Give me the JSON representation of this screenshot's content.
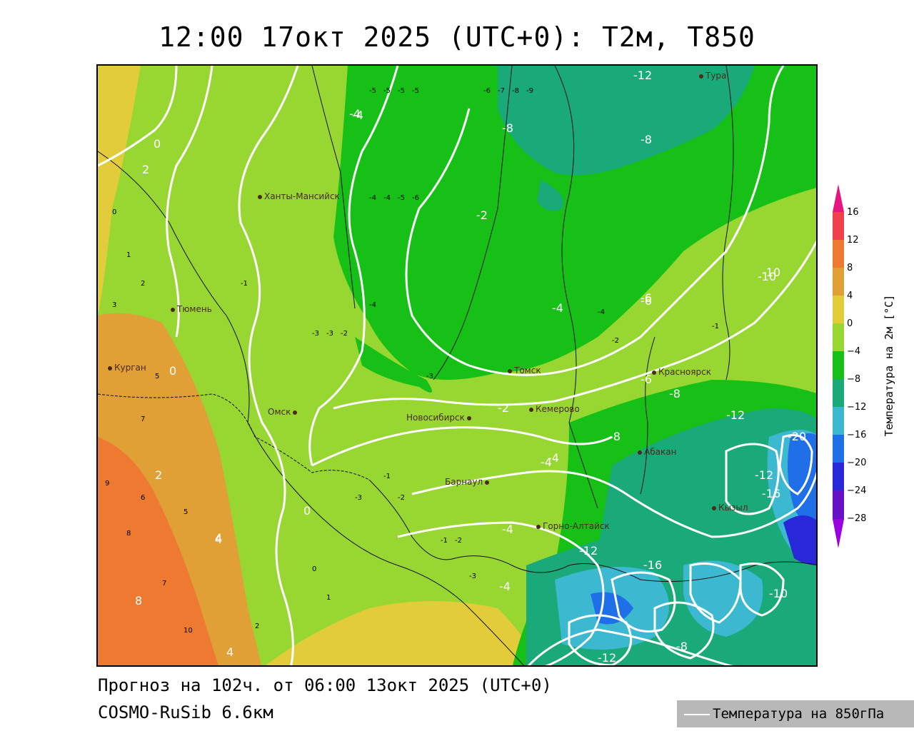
{
  "header": {
    "title": "12:00 17окт 2025 (UTC+0): T2м, T850"
  },
  "footer": {
    "forecast": "Прогноз на 102ч. от 06:00 13окт 2025 (UTC+0)",
    "model": "COSMO-RuSib 6.6км",
    "legend_label": "Температура на 850гПа"
  },
  "colorbar": {
    "title": "Температура на 2м [°C]",
    "ticks": [
      "16",
      "12",
      "8",
      "4",
      "0",
      "−4",
      "−8",
      "−12",
      "−16",
      "−20",
      "−24",
      "−28"
    ],
    "colors": [
      "#e8157e",
      "#f0404a",
      "#ee7a32",
      "#e0a035",
      "#e3cc3a",
      "#98d632",
      "#16c016",
      "#1aa978",
      "#3cb9d0",
      "#1e6fe8",
      "#2828d8",
      "#6a10c8",
      "#9a00e0"
    ]
  },
  "cities": [
    {
      "name": "Тура"
    },
    {
      "name": "Ханты-Мансийск"
    },
    {
      "name": "Тюмень"
    },
    {
      "name": "Курган"
    },
    {
      "name": "Омск"
    },
    {
      "name": "Новосибирск"
    },
    {
      "name": "Томск"
    },
    {
      "name": "Кемерово"
    },
    {
      "name": "Красноярск"
    },
    {
      "name": "Абакан"
    },
    {
      "name": "Барнаул"
    },
    {
      "name": "Горно-Алтайск"
    },
    {
      "name": "Кызыл"
    }
  ],
  "t850_labels": [
    "-12",
    "-8",
    "-4",
    "-2",
    "0",
    "0",
    "0",
    "2",
    "2",
    "4",
    "-4",
    "-6",
    "-8",
    "-10",
    "-12",
    "-16",
    "-12",
    "-10",
    "-4",
    "-8",
    "-12",
    "-16",
    "-20",
    "-6",
    "-4",
    "-6",
    "-8",
    "-4",
    "-2",
    "-4",
    "-4",
    "4",
    "4",
    "8",
    "-10",
    "-8",
    "-12"
  ],
  "t2_labels": [
    "-5",
    "-5",
    "-5",
    "-5",
    "-6",
    "-7",
    "-8",
    "-9",
    "-4",
    "-4",
    "-5",
    "-6",
    "-3",
    "-3",
    "-2",
    "-1",
    "0",
    "1",
    "2",
    "3",
    "5",
    "7",
    "6",
    "5",
    "8",
    "9",
    "10",
    "7",
    "-1",
    "-2",
    "-3",
    "-4",
    "-2",
    "-1",
    "-1",
    "-2",
    "-3",
    "0",
    "1",
    "2",
    "-4",
    "-3"
  ]
}
